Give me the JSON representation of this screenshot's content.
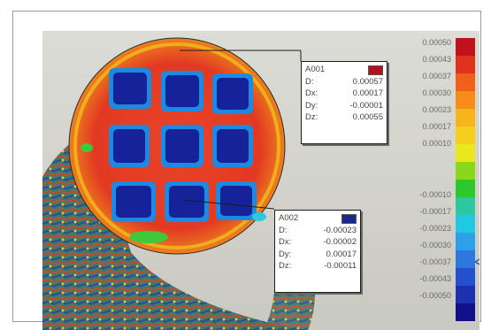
{
  "probes": [
    {
      "name": "A001",
      "swatch_color": "#b3121c",
      "rows": [
        {
          "label": "D:",
          "value": "0.00057"
        },
        {
          "label": "Dx:",
          "value": "0.00017"
        },
        {
          "label": "Dy:",
          "value": "-0.00001"
        },
        {
          "label": "Dz:",
          "value": "0.00055"
        }
      ]
    },
    {
      "name": "A002",
      "swatch_color": "#1a2a8a",
      "rows": [
        {
          "label": "D:",
          "value": "-0.00023"
        },
        {
          "label": "Dx:",
          "value": "-0.00002"
        },
        {
          "label": "Dy:",
          "value": "0.00017"
        },
        {
          "label": "Dz:",
          "value": "-0.00011"
        }
      ]
    }
  ],
  "legend": {
    "labels": [
      "0.00050",
      "0.00043",
      "0.00037",
      "0.00030",
      "0.00023",
      "0.00017",
      "0.00010",
      "-0.00010",
      "-0.00017",
      "-0.00023",
      "-0.00030",
      "-0.00037",
      "-0.00043",
      "-0.00050"
    ],
    "colors": [
      "#c0121c",
      "#e0321c",
      "#f0601a",
      "#f88c18",
      "#f8b41c",
      "#f4d01c",
      "#e8e81c",
      "#8ad81c",
      "#2cc82c",
      "#2cc8a0",
      "#20c8e4",
      "#2ca0e8",
      "#2c78e0",
      "#2450d0",
      "#1c30b0",
      "#10108a"
    ]
  }
}
